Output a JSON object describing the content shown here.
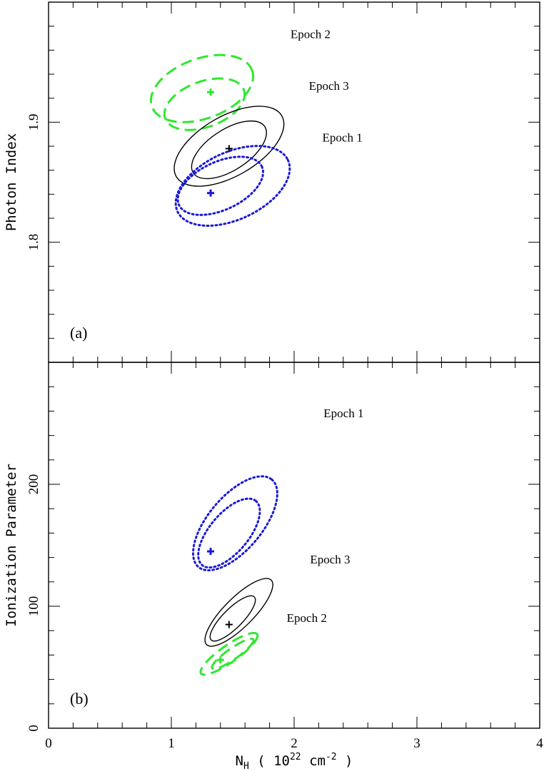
{
  "chart_data": [
    {
      "type": "contour",
      "panel_label": "(a)",
      "ylabel": "Photon Index",
      "xlim": [
        0,
        4
      ],
      "ylim": [
        1.7,
        2.0
      ],
      "yticks": [
        1.8,
        1.9
      ],
      "ytick_labels": [
        "1.8",
        "1.9"
      ],
      "contours": [
        {
          "name": "Epoch 2",
          "color": "#2ee82e",
          "style": "dashed",
          "best_fit": [
            1.32,
            1.925
          ],
          "label_at": [
            1.97,
            1.97
          ],
          "ellipses": [
            {
              "cx": 1.25,
              "cy": 1.928,
              "rx": 0.7,
              "ry": 0.025,
              "angle": 20
            },
            {
              "cx": 1.27,
              "cy": 1.915,
              "rx": 0.55,
              "ry": 0.019,
              "angle": 20
            }
          ]
        },
        {
          "name": "Epoch 3",
          "color": "#000000",
          "style": "solid",
          "best_fit": [
            1.47,
            1.878
          ],
          "label_at": [
            2.12,
            1.927
          ],
          "ellipses": [
            {
              "cx": 1.47,
              "cy": 1.88,
              "rx": 0.8,
              "ry": 0.025,
              "angle": 30
            },
            {
              "cx": 1.47,
              "cy": 1.877,
              "rx": 0.56,
              "ry": 0.017,
              "angle": 33
            }
          ]
        },
        {
          "name": "Epoch 1",
          "color": "#1a1ad6",
          "style": "dotted",
          "best_fit": [
            1.32,
            1.841
          ],
          "label_at": [
            2.23,
            1.884
          ],
          "ellipses": [
            {
              "cx": 1.5,
              "cy": 1.847,
              "rx": 0.8,
              "ry": 0.028,
              "angle": 25
            },
            {
              "cx": 1.4,
              "cy": 1.847,
              "rx": 0.6,
              "ry": 0.02,
              "angle": 25
            }
          ]
        }
      ]
    },
    {
      "type": "contour",
      "panel_label": "(b)",
      "ylabel": "Ionization Parameter",
      "xlabel_main": "N",
      "xlabel_sub": "H",
      "xlabel_rest": " ( 10",
      "xlabel_exp": "22",
      "xlabel_unit": " cm",
      "xlabel_unit_exp": "-2",
      "xlabel_close": " )",
      "xlim": [
        0,
        4
      ],
      "ylim": [
        0,
        300
      ],
      "xticks": [
        0,
        1,
        2,
        3,
        4
      ],
      "xtick_labels": [
        "0",
        "1",
        "2",
        "3",
        "4"
      ],
      "yticks": [
        0,
        100,
        200
      ],
      "ytick_labels": [
        "0",
        "100",
        "200"
      ],
      "contours": [
        {
          "name": "Epoch 1",
          "color": "#1a1ad6",
          "style": "dotted",
          "best_fit": [
            1.32,
            145
          ],
          "label_at": [
            2.24,
            255
          ],
          "ellipses": [
            {
              "cx": 1.52,
              "cy": 168,
              "rx": 0.75,
              "ry": 22,
              "angle": 50
            },
            {
              "cx": 1.47,
              "cy": 160,
              "rx": 0.55,
              "ry": 16,
              "angle": 50
            }
          ]
        },
        {
          "name": "Epoch 3",
          "color": "#000000",
          "style": "solid",
          "best_fit": [
            1.47,
            85
          ],
          "label_at": [
            2.13,
            135
          ],
          "ellipses": [
            {
              "cx": 1.55,
              "cy": 95,
              "rx": 0.6,
              "ry": 12,
              "angle": 45
            },
            {
              "cx": 1.5,
              "cy": 90,
              "rx": 0.4,
              "ry": 8,
              "angle": 45
            }
          ]
        },
        {
          "name": "Epoch 2",
          "color": "#2ee82e",
          "style": "dashed",
          "best_fit": [
            1.4,
            56
          ],
          "label_at": [
            1.94,
            87
          ],
          "ellipses": [
            {
              "cx": 1.47,
              "cy": 61,
              "rx": 0.45,
              "ry": 7,
              "angle": 35
            },
            {
              "cx": 1.5,
              "cy": 61,
              "rx": 0.33,
              "ry": 4.5,
              "angle": 35
            }
          ]
        }
      ]
    }
  ]
}
